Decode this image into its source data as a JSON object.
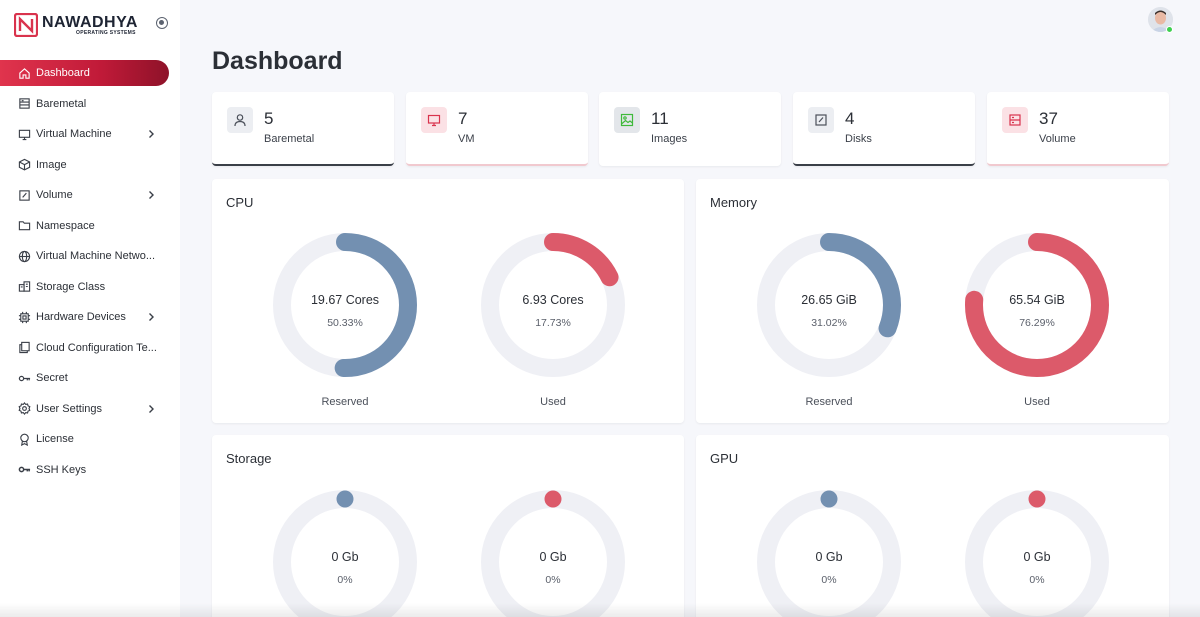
{
  "brand": {
    "name": "NAWADHYA",
    "sub": "OPERATING SYSTEMS"
  },
  "sidebar": {
    "items": [
      {
        "label": "Dashboard",
        "icon": "home-icon",
        "active": true,
        "has_children": false
      },
      {
        "label": "Baremetal",
        "icon": "server-icon",
        "active": false,
        "has_children": false
      },
      {
        "label": "Virtual Machine",
        "icon": "monitor-icon",
        "active": false,
        "has_children": true
      },
      {
        "label": "Image",
        "icon": "cube-icon",
        "active": false,
        "has_children": false
      },
      {
        "label": "Volume",
        "icon": "volume-icon",
        "active": false,
        "has_children": true
      },
      {
        "label": "Namespace",
        "icon": "folder-icon",
        "active": false,
        "has_children": false
      },
      {
        "label": "Virtual Machine Netwo...",
        "icon": "globe-icon",
        "active": false,
        "has_children": false
      },
      {
        "label": "Storage Class",
        "icon": "storage-class-icon",
        "active": false,
        "has_children": false
      },
      {
        "label": "Hardware Devices",
        "icon": "chip-icon",
        "active": false,
        "has_children": true
      },
      {
        "label": "Cloud Configuration Te...",
        "icon": "copy-icon",
        "active": false,
        "has_children": false
      },
      {
        "label": "Secret",
        "icon": "key-icon",
        "active": false,
        "has_children": false
      },
      {
        "label": "User Settings",
        "icon": "gear-icon",
        "active": false,
        "has_children": true
      },
      {
        "label": "License",
        "icon": "award-icon",
        "active": false,
        "has_children": false
      },
      {
        "label": "SSH Keys",
        "icon": "key-icon",
        "active": false,
        "has_children": false
      }
    ]
  },
  "header": {
    "title": "Dashboard"
  },
  "stats": [
    {
      "value": "5",
      "label": "Baremetal",
      "icon": "user-icon",
      "bg": "#eceef2",
      "stroke": "#4b505a"
    },
    {
      "value": "7",
      "label": "VM",
      "icon": "monitor-icon",
      "bg": "#fbe1e5",
      "stroke": "#d9334d"
    },
    {
      "value": "11",
      "label": "Images",
      "icon": "image-icon",
      "bg": "#e3e6ea",
      "stroke": "#3fb93b"
    },
    {
      "value": "4",
      "label": "Disks",
      "icon": "disk-icon",
      "bg": "#eceef2",
      "stroke": "#4b505a"
    },
    {
      "value": "37",
      "label": "Volume",
      "icon": "volume-box-icon",
      "bg": "#fbe1e5",
      "stroke": "#d9334d"
    }
  ],
  "colors": {
    "accent": "#d9334d",
    "blue": "#7390b1",
    "red": "#dc5a6a",
    "track": "#eff0f5"
  },
  "panels": {
    "cpu": {
      "title": "CPU",
      "reserved": {
        "value": "19.67 Cores",
        "pct_label": "50.33%",
        "fraction": 0.5033,
        "caption": "Reserved"
      },
      "used": {
        "value": "6.93 Cores",
        "pct_label": "17.73%",
        "fraction": 0.1773,
        "caption": "Used"
      }
    },
    "memory": {
      "title": "Memory",
      "reserved": {
        "value": "26.65 GiB",
        "pct_label": "31.02%",
        "fraction": 0.3102,
        "caption": "Reserved"
      },
      "used": {
        "value": "65.54 GiB",
        "pct_label": "76.29%",
        "fraction": 0.7629,
        "caption": "Used"
      }
    },
    "storage": {
      "title": "Storage",
      "reserved": {
        "value": "0 Gb",
        "pct_label": "0%",
        "fraction": 0
      },
      "used": {
        "value": "0 Gb",
        "pct_label": "0%",
        "fraction": 0
      }
    },
    "gpu": {
      "title": "GPU",
      "reserved": {
        "value": "0 Gb",
        "pct_label": "0%",
        "fraction": 0
      },
      "used": {
        "value": "0 Gb",
        "pct_label": "0%",
        "fraction": 0
      }
    }
  }
}
